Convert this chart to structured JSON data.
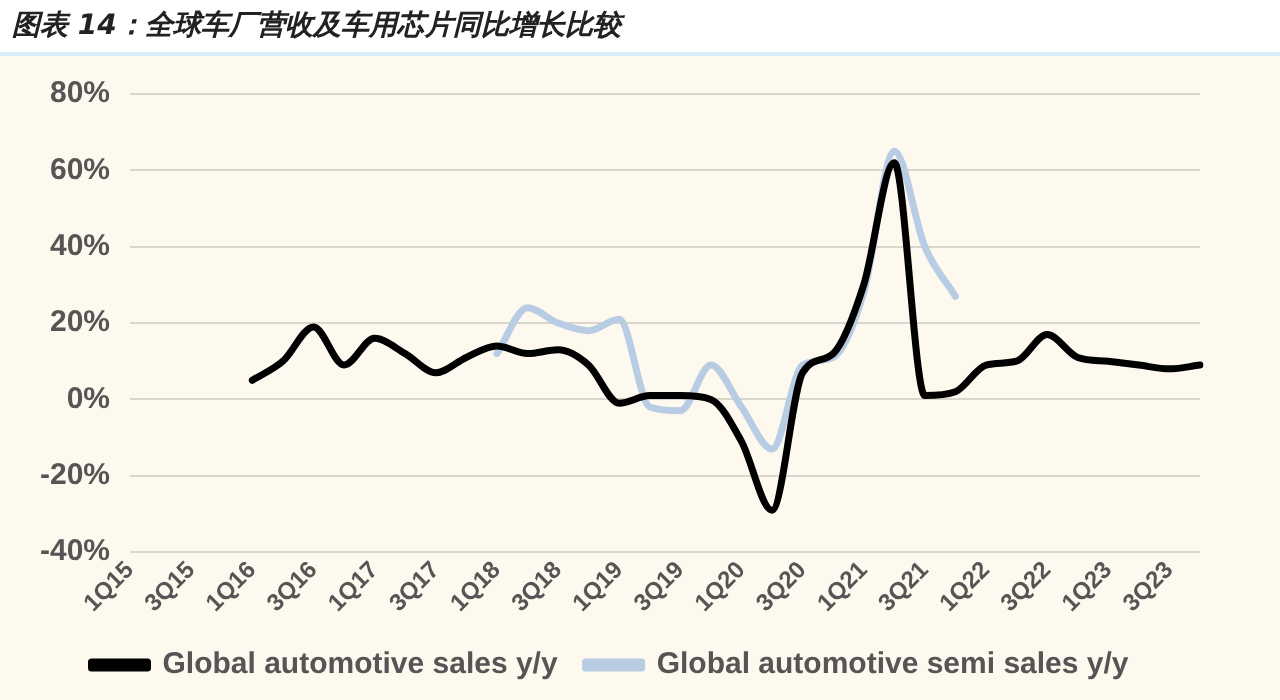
{
  "chart_data": {
    "type": "line",
    "title": "图表 14：全球车厂营收及车用芯片同比增长比较",
    "categories": [
      "1Q15",
      null,
      "3Q15",
      null,
      "1Q16",
      null,
      "3Q16",
      null,
      "1Q17",
      null,
      "3Q17",
      null,
      "1Q18",
      null,
      "3Q18",
      null,
      "1Q19",
      null,
      "3Q19",
      null,
      "1Q20",
      null,
      "3Q20",
      null,
      "1Q21",
      null,
      "3Q21",
      null,
      "1Q22",
      null,
      "3Q22",
      null,
      "1Q23",
      null,
      "3Q23",
      null
    ],
    "series": [
      {
        "name": "Global automotive sales y/y",
        "color": "#000000",
        "values": [
          null,
          null,
          null,
          null,
          5,
          10,
          19,
          9,
          16,
          12,
          7,
          11,
          14,
          12,
          13,
          9,
          -1,
          1,
          1,
          0,
          -11,
          -29,
          7,
          12,
          30,
          62,
          1,
          2,
          9,
          10,
          17,
          11,
          10,
          9,
          8,
          9
        ]
      },
      {
        "name": "Global automotive semi sales y/y",
        "color": "#b8cce4",
        "values": [
          null,
          null,
          null,
          null,
          null,
          null,
          null,
          null,
          null,
          null,
          null,
          null,
          12,
          24,
          20,
          18,
          21,
          -2,
          -3,
          9,
          -2,
          -13,
          9,
          11,
          28,
          65,
          40,
          27,
          null,
          null,
          null,
          null,
          null,
          null,
          null,
          null
        ]
      }
    ],
    "ylim": [
      -40,
      80
    ],
    "yticks": [
      {
        "value": -40,
        "label": "-40%"
      },
      {
        "value": -20,
        "label": "-20%"
      },
      {
        "value": 0,
        "label": "0%"
      },
      {
        "value": 20,
        "label": "20%"
      },
      {
        "value": 40,
        "label": "40%"
      },
      {
        "value": 60,
        "label": "60%"
      },
      {
        "value": 80,
        "label": "80%"
      }
    ],
    "grid": "y",
    "legend": "bottom",
    "marker": "none",
    "line_style": "solid"
  }
}
